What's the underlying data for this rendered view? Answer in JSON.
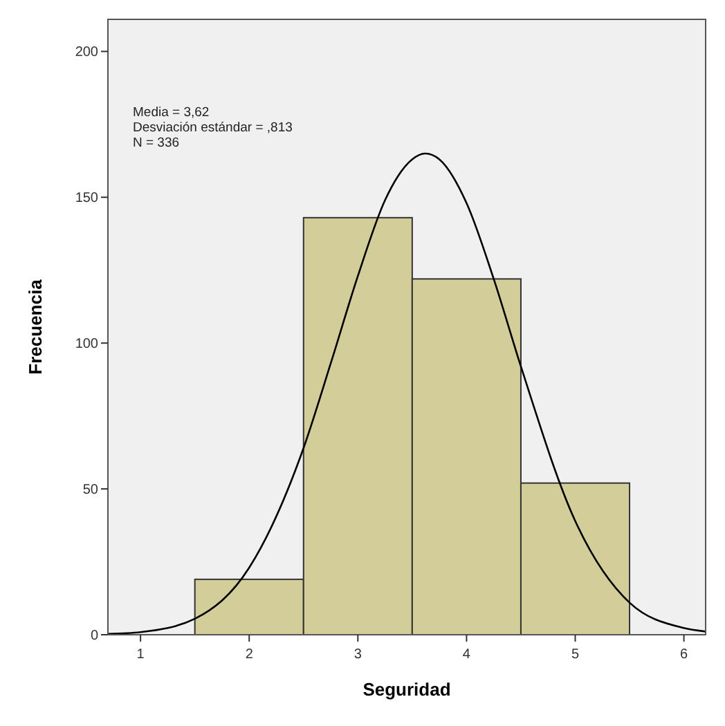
{
  "chart_data": {
    "type": "histogram",
    "xlabel": "Seguridad",
    "ylabel": "Frecuencia",
    "bins": [
      1.5,
      2.5,
      3.5,
      4.5,
      5.5
    ],
    "series": [
      {
        "color": "#d2cd99",
        "values": [
          19,
          143,
          122,
          52
        ]
      },
      {
        "type": "line",
        "color": "#000000",
        "x": [
          0.7,
          1,
          1.5,
          2,
          2.5,
          2.75,
          3,
          3.25,
          3.5,
          3.62,
          3.75,
          4,
          4.25,
          4.5,
          5,
          5.5,
          6,
          6.2
        ],
        "values": [
          0.3,
          0.9,
          5.5,
          23,
          64,
          93,
          123,
          149,
          163,
          165,
          163,
          148,
          122,
          92,
          39,
          11,
          2.3,
          1.1
        ]
      }
    ],
    "xlim": [
      0.7,
      6.2
    ],
    "ylim": [
      0,
      211
    ],
    "xticks": [
      1,
      2,
      3,
      4,
      5,
      6
    ],
    "yticks": [
      0,
      50,
      100,
      150,
      200
    ],
    "grid": false,
    "marker": "none",
    "line_style": "solid",
    "annotations": [
      "Media = 3,62",
      "Desviación estándar = ,813",
      "N = 336"
    ]
  }
}
